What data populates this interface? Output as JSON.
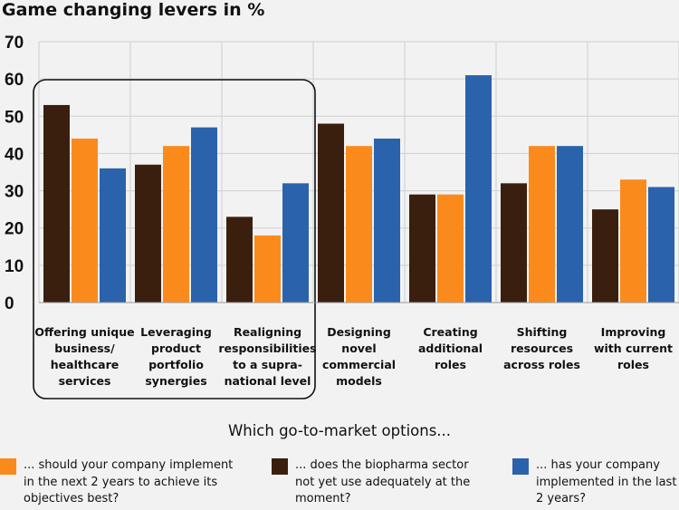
{
  "chart_data": {
    "type": "bar",
    "title": "Game changing levers in %",
    "xlabel": "Which go-to-market options...",
    "ylim": [
      0,
      70
    ],
    "yticks": [
      "0",
      "10",
      "20",
      "30",
      "40",
      "50",
      "60",
      "70"
    ],
    "grid": true,
    "legend_position": "bottom",
    "categories": [
      [
        "Offering unique",
        "business/",
        "healthcare",
        "services"
      ],
      [
        "Leveraging",
        "product",
        "portfolio",
        "synergies"
      ],
      [
        "Realigning",
        "responsibilities",
        "to a supra-",
        "national level"
      ],
      [
        "Designing",
        "novel",
        "commercial",
        "models"
      ],
      [
        "Creating",
        "additional",
        "roles"
      ],
      [
        "Shifting",
        "resources",
        "across roles"
      ],
      [
        "Improving",
        "with current",
        "roles"
      ]
    ],
    "highlighted_categories": [
      0,
      1,
      2
    ],
    "series": [
      {
        "name": "... does the biopharma sector not yet use adequately at the moment?",
        "color": "#3a1f0f",
        "values": [
          53,
          37,
          23,
          48,
          29,
          32,
          25
        ]
      },
      {
        "name": "... should your company implement in the next 2 years to achieve its objectives best?",
        "color": "#fb8a1c",
        "values": [
          44,
          42,
          18,
          42,
          29,
          42,
          33
        ]
      },
      {
        "name": "... has your company implemented in the last 2 years?",
        "color": "#2b62ac",
        "values": [
          36,
          47,
          32,
          44,
          61,
          42,
          31
        ]
      }
    ]
  },
  "legend": [
    {
      "lines": [
        "... should your company implement",
        "in the next 2 years to achieve its",
        "objectives best?"
      ],
      "color": "#fb8a1c"
    },
    {
      "lines": [
        "... does the biopharma sector",
        "not yet use adequately at the",
        "moment?"
      ],
      "color": "#3a1f0f"
    },
    {
      "lines": [
        "... has your company",
        "implemented in the last",
        "2 years?"
      ],
      "color": "#2b62ac"
    }
  ]
}
